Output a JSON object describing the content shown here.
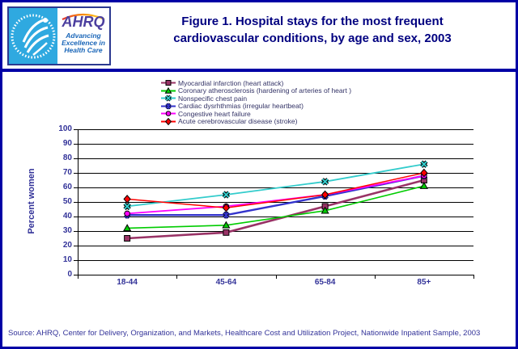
{
  "header": {
    "title_line1": "Figure 1. Hospital stays for the most frequent",
    "title_line2": "cardiovascular conditions, by age and sex, 2003",
    "logo": {
      "org_acronym": "AHRQ",
      "tagline_line1": "Advancing",
      "tagline_line2": "Excellence in",
      "tagline_line3": "Health Care"
    }
  },
  "chart_data": {
    "type": "line",
    "title": "",
    "categories": [
      "18-44",
      "45-64",
      "65-84",
      "85+"
    ],
    "xlabel": "",
    "ylabel": "Percent women",
    "ylim": [
      0,
      100
    ],
    "ytick_step": 10,
    "grid": true,
    "legend_position": "top",
    "series": [
      {
        "name": "Myocardial infarction (heart attack)",
        "values": [
          25,
          29,
          47,
          65
        ],
        "color": "#993366",
        "marker": "square"
      },
      {
        "name": "Coronary atherosclerosis (hardening of arteries of heart )",
        "values": [
          32,
          34,
          44,
          61
        ],
        "color": "#00CC00",
        "marker": "triangle"
      },
      {
        "name": "Nonspecific chest pain",
        "values": [
          47,
          55,
          64,
          76
        ],
        "color": "#33CCCC",
        "marker": "x"
      },
      {
        "name": "Cardiac dysrhthmias (irregular heartbeat)",
        "values": [
          41,
          41,
          54,
          68
        ],
        "color": "#3333CC",
        "marker": "asterisk"
      },
      {
        "name": "Congestive heart failure",
        "values": [
          42,
          47,
          55,
          68
        ],
        "color": "#FF00FF",
        "marker": "circle"
      },
      {
        "name": "Acute cerebrovascular disease (stroke)",
        "values": [
          52,
          46,
          55,
          70
        ],
        "color": "#FF0000",
        "marker": "diamond"
      }
    ]
  },
  "footer": {
    "source": "Source: AHRQ, Center for Delivery, Organization, and Markets, Healthcare Cost and Utilization Project, Nationwide Inpatient Sample, 2003"
  },
  "colors": {
    "accent_navy": "#0000A5",
    "title_navy": "#000080",
    "tick_navy": "#333399",
    "logo_cyan": "#2FA9E0"
  }
}
